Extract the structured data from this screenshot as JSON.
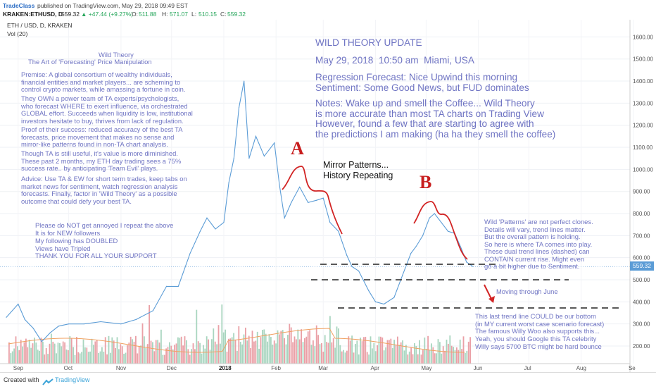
{
  "header": {
    "brand": "TradeClass",
    "published": "published on TradingView.com, May 29, 2018 09:49 EST",
    "ticker": "KRAKEN:ETHUSD, D",
    "last": "559.32",
    "change": "▲ +47.44 (+9.27%)",
    "o_label": "O:",
    "o_value": "511.88",
    "h_label": "H:",
    "h_value": "571.07",
    "l_label": "L:",
    "l_value": "510.15",
    "c_label": "C:",
    "c_value": "559.32",
    "symbol_line": "ETH / USD, D, KRAKEN",
    "volume_label": "Vol (20)"
  },
  "footer": {
    "created_with": "Created with",
    "brand": "TradingView"
  },
  "price_label": "559.32",
  "annotations": {
    "left_title": "Wild Theory",
    "left_subtitle": "The Art of 'Forecasting' Price Manipulation",
    "premise": "Premise: A global consortium of wealthy individuals,\nfinancial entities and market players... are scheming to\ncontrol crypto markets, while amassing a fortune in coin.",
    "team": "They OWN a power team of TA experts/psychologists,\nwho forecast WHERE to exert influence, via orchestrated\nGLOBAL effort. Succeeds when liquidity is low, institutional\ninvestors hesitate to buy, thrives from lack of regulation.",
    "proof": "Proof of their success: reduced accuracy of the best TA\nforecasts, price movement that makes no sense and\nmirror-like patterns found in non-TA chart analysis.",
    "though": "Though TA is still useful, it's value is more diminished.\nThese past 2 months, my ETH day trading sees a 75%\nsuccess rate.. by anticipating 'Team Evil' plays.",
    "advice": "Advice: Use TA & EW for short term trades, keep tabs on\nmarket news for sentiment, watch regression analysis\nforecasts. Finally, factor in 'Wild Theory' as a possible\noutcome that could defy your best TA.",
    "followers": "Please do NOT get annoyed I repeat the above\nIt is for NEW followers",
    "doubled": "My following has DOUBLED\nViews have Tripled\nTHANK YOU FOR ALL YOUR SUPPORT",
    "update_title": "WILD THEORY UPDATE",
    "update_date": "May 29, 2018  10:50 am  Miami, USA",
    "regression": "Regression Forecast: Nice Upwind this morning\nSentiment: Some Good News, but FUD dominates",
    "notes": "Notes: Wake up and smell the Coffee... Wild Theory\nis more accurate than most TA charts on Trading View\nHowever, found a few that are starting to agree with\nthe predictions I am making (ha ha they smell the coffee)",
    "mirror": "Mirror Patterns...\nHistory Repeating",
    "letter_a": "A",
    "letter_b": "B",
    "patterns": "Wild 'Patterns' are not perfect clones.\nDetails will vary, trend lines matter.\nBut the overall pattern is holding.\nSo here is where TA comes into play.\nThese dual trend lines (dashed) can\nCONTAIN current rise. Might even\ngo a bit higher due to Sentiment.",
    "moving": "Moving through June",
    "bottom": "This last trend line COULD be our bottom\n(in MY current worst case scenario forecast)\nThe famous Willy Woo also supports this...\nYeah, you should Google this TA celebrity",
    "willy": "Willy says 5700 BTC might be hard bounce"
  },
  "colors": {
    "price_line": "#5b9cd6",
    "annotation_text": "#6f74c3",
    "marker_red": "#d22424",
    "trendline": "#222222",
    "volume_up": "#a8d5bf",
    "volume_down": "#eaa0a6",
    "volume_ma": "#f0a060",
    "price_tag": "#5b9cd6"
  },
  "chart_data": {
    "type": "line",
    "title": "ETH / USD, D, KRAKEN",
    "xlabel": "",
    "ylabel": "",
    "ylim": [
      100,
      1650
    ],
    "y_ticks": [
      "1600.00",
      "1500.00",
      "1400.00",
      "1300.00",
      "1200.00",
      "1100.00",
      "1000.00",
      "900.00",
      "800.00",
      "700.00",
      "600.00",
      "500.00",
      "400.00",
      "300.00",
      "200.00"
    ],
    "x_ticks": [
      "Sep",
      "Oct",
      "Nov",
      "Dec",
      "2018",
      "Feb",
      "Mar",
      "Apr",
      "May",
      "Jun",
      "Jul",
      "Aug",
      "Se"
    ],
    "x": [
      "2017-08-25",
      "2017-09-01",
      "2017-09-05",
      "2017-09-10",
      "2017-09-15",
      "2017-09-20",
      "2017-09-25",
      "2017-10-01",
      "2017-10-10",
      "2017-10-20",
      "2017-11-01",
      "2017-11-10",
      "2017-11-20",
      "2017-11-28",
      "2017-12-05",
      "2017-12-12",
      "2017-12-18",
      "2017-12-22",
      "2017-12-27",
      "2018-01-01",
      "2018-01-04",
      "2018-01-07",
      "2018-01-10",
      "2018-01-13",
      "2018-01-16",
      "2018-01-20",
      "2018-01-25",
      "2018-01-31",
      "2018-02-03",
      "2018-02-06",
      "2018-02-10",
      "2018-02-15",
      "2018-02-20",
      "2018-02-25",
      "2018-03-01",
      "2018-03-05",
      "2018-03-10",
      "2018-03-15",
      "2018-03-18",
      "2018-03-22",
      "2018-03-28",
      "2018-04-01",
      "2018-04-06",
      "2018-04-12",
      "2018-04-17",
      "2018-04-22",
      "2018-04-25",
      "2018-04-29",
      "2018-05-03",
      "2018-05-06",
      "2018-05-10",
      "2018-05-14",
      "2018-05-18",
      "2018-05-22",
      "2018-05-25",
      "2018-05-29"
    ],
    "series": [
      {
        "values": [
          330,
          390,
          320,
          280,
          220,
          260,
          290,
          300,
          300,
          310,
          300,
          320,
          360,
          470,
          470,
          620,
          720,
          780,
          730,
          760,
          940,
          1050,
          1280,
          1400,
          1050,
          1150,
          1060,
          1120,
          930,
          780,
          850,
          920,
          850,
          860,
          870,
          760,
          720,
          610,
          560,
          540,
          450,
          400,
          390,
          420,
          520,
          620,
          650,
          700,
          780,
          800,
          760,
          720,
          710,
          640,
          580,
          559.32
        ]
      }
    ],
    "current_price": 559.32,
    "volume_ma_period": 20
  }
}
